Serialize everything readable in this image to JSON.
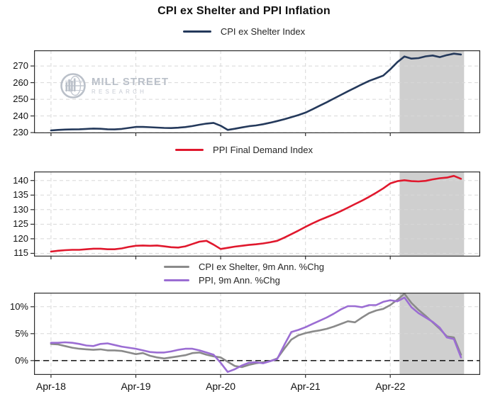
{
  "title": "CPI ex Shelter and PPI Inflation",
  "watermark": {
    "line1": "MILL STREET",
    "line2": "RESEARCH"
  },
  "colors": {
    "cpi_index_line": "#24395B",
    "ppi_index_line": "#E0182D",
    "cpi_chg_line": "#8A8A8A",
    "ppi_chg_line": "#9B6DD3",
    "forecast_shading": "#CFCFCF",
    "grid": "#D8D8D8",
    "axis_border": "#2E2E2E",
    "zero_line": "#000000"
  },
  "x_ticks": [
    {
      "label": "Apr-18",
      "year": 0
    },
    {
      "label": "Apr-19",
      "year": 1
    },
    {
      "label": "Apr-20",
      "year": 2
    },
    {
      "label": "Apr-21",
      "year": 3
    },
    {
      "label": "Apr-22",
      "year": 4
    }
  ],
  "forecast_region_years": {
    "start": 4.11,
    "end": 4.87
  },
  "chart_data": [
    {
      "type": "line",
      "panel": "top",
      "x_start": "Apr-2018",
      "x_step": "1 month",
      "ylim": [
        229.6,
        279.4
      ],
      "y_ticks": [
        {
          "label": "230",
          "value": 230
        },
        {
          "label": "240",
          "value": 240
        },
        {
          "label": "250",
          "value": 250
        },
        {
          "label": "260",
          "value": 260
        },
        {
          "label": "270",
          "value": 270
        }
      ],
      "zero_line": false,
      "series": [
        {
          "name": "CPI ex Shelter Index",
          "color": "#24395B",
          "values": [
            231.3,
            231.6,
            231.8,
            231.9,
            232.0,
            232.2,
            232.4,
            232.3,
            232.0,
            231.9,
            232.2,
            232.8,
            233.4,
            233.4,
            233.2,
            233.0,
            232.8,
            232.7,
            232.9,
            233.3,
            233.9,
            234.7,
            235.4,
            235.8,
            234.1,
            231.6,
            232.3,
            233.1,
            233.8,
            234.3,
            235.0,
            235.9,
            236.9,
            238.0,
            239.2,
            240.5,
            242.0,
            244.0,
            246.1,
            248.2,
            250.4,
            252.6,
            254.8,
            256.9,
            259.0,
            261.0,
            262.6,
            264.2,
            268.0,
            272.3,
            275.7,
            274.4,
            274.7,
            275.8,
            276.3,
            275.3,
            276.5,
            277.4,
            276.9
          ]
        }
      ]
    },
    {
      "type": "line",
      "panel": "middle",
      "x_start": "Apr-2018",
      "x_step": "1 month",
      "ylim": [
        113.9,
        143.1
      ],
      "y_ticks": [
        {
          "label": "115",
          "value": 115
        },
        {
          "label": "120",
          "value": 120
        },
        {
          "label": "125",
          "value": 125
        },
        {
          "label": "130",
          "value": 130
        },
        {
          "label": "135",
          "value": 135
        },
        {
          "label": "140",
          "value": 140
        }
      ],
      "zero_line": false,
      "series": [
        {
          "name": "PPI Final Demand Index",
          "color": "#E0182D",
          "values": [
            115.6,
            115.9,
            116.1,
            116.2,
            116.2,
            116.4,
            116.6,
            116.6,
            116.4,
            116.4,
            116.7,
            117.2,
            117.6,
            117.7,
            117.6,
            117.7,
            117.4,
            117.1,
            117.0,
            117.4,
            118.2,
            119.0,
            119.3,
            118.0,
            116.5,
            116.9,
            117.3,
            117.6,
            117.9,
            118.1,
            118.4,
            118.8,
            119.3,
            120.4,
            121.6,
            122.8,
            124.1,
            125.3,
            126.4,
            127.4,
            128.4,
            129.5,
            130.7,
            131.9,
            133.1,
            134.4,
            135.8,
            137.3,
            139.0,
            139.8,
            140.1,
            139.8,
            139.7,
            139.9,
            140.4,
            140.8,
            141.0,
            141.6,
            140.6
          ]
        }
      ]
    },
    {
      "type": "line",
      "panel": "bottom",
      "x_start": "Apr-2018",
      "x_step": "1 month",
      "ylim": [
        -2.65,
        12.6
      ],
      "y_ticks": [
        {
          "label": "0%",
          "value": 0
        },
        {
          "label": "5%",
          "value": 5
        },
        {
          "label": "10%",
          "value": 10
        }
      ],
      "zero_line": true,
      "series": [
        {
          "name": "CPI ex Shelter, 9m Ann. %Chg",
          "color": "#8A8A8A",
          "values": [
            3.1,
            3.0,
            2.7,
            2.4,
            2.2,
            2.1,
            2.0,
            2.1,
            1.9,
            1.9,
            1.8,
            1.5,
            1.2,
            1.4,
            0.9,
            0.6,
            0.4,
            0.6,
            0.8,
            1.0,
            1.4,
            1.5,
            1.1,
            0.8,
            0.6,
            -0.2,
            -1.0,
            -1.2,
            -0.8,
            -0.5,
            -0.3,
            -0.1,
            0.4,
            2.2,
            3.9,
            4.7,
            5.1,
            5.4,
            5.6,
            5.9,
            6.3,
            6.8,
            7.3,
            7.1,
            8.0,
            8.8,
            9.3,
            9.6,
            10.3,
            11.3,
            12.4,
            10.7,
            9.4,
            8.3,
            7.1,
            5.9,
            4.5,
            4.3,
            1.1
          ]
        },
        {
          "name": "PPI, 9m Ann. %Chg",
          "color": "#9B6DD3",
          "values": [
            3.3,
            3.3,
            3.4,
            3.3,
            3.1,
            2.8,
            2.7,
            3.1,
            3.2,
            2.9,
            2.6,
            2.4,
            2.2,
            1.9,
            1.6,
            1.5,
            1.5,
            1.7,
            2.0,
            2.2,
            2.2,
            1.9,
            1.5,
            1.1,
            -0.4,
            -2.1,
            -1.6,
            -0.9,
            -0.4,
            -0.3,
            -0.5,
            -0.1,
            0.3,
            2.9,
            5.3,
            5.7,
            6.2,
            6.8,
            7.4,
            8.0,
            8.7,
            9.5,
            10.1,
            10.1,
            9.9,
            10.3,
            10.3,
            10.9,
            11.2,
            11.0,
            11.7,
            9.9,
            8.8,
            8.0,
            7.2,
            6.1,
            4.3,
            4.0,
            0.6
          ]
        }
      ]
    }
  ]
}
